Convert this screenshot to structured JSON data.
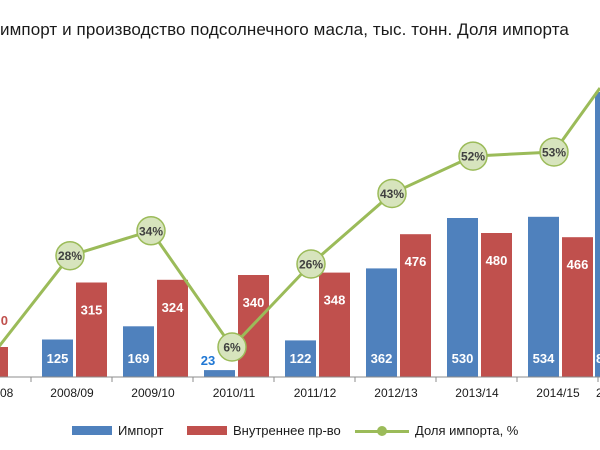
{
  "title": "импорт и производство подсолнечного масла, тыс. тонн.  Доля импорта",
  "colors": {
    "import": "#4f81bd",
    "domestic": "#c0504d",
    "share": "#9bbb59",
    "share_marker": "#d7e4bd",
    "import_label_small": "#1f77d4"
  },
  "legend": {
    "import": "Импорт",
    "domestic": "Внутреннее пр-во",
    "share": "Доля импорта, %"
  },
  "chart_data": {
    "type": "bar",
    "categories": [
      "08",
      "2008/09",
      "2009/10",
      "2010/11",
      "2011/12",
      "2012/13",
      "2013/14",
      "2014/15",
      "2"
    ],
    "series": [
      {
        "name": "Импорт",
        "kind": "bar",
        "values": [
          null,
          125,
          169,
          23,
          122,
          362,
          530,
          534,
          null
        ],
        "labels": [
          "",
          "125",
          "169",
          "23",
          "122",
          "362",
          "530",
          "534",
          "8"
        ]
      },
      {
        "name": "Внутреннее пр-во",
        "kind": "bar",
        "values": [
          null,
          315,
          324,
          340,
          348,
          476,
          480,
          466,
          null
        ],
        "labels": [
          "0",
          "315",
          "324",
          "340",
          "348",
          "476",
          "480",
          "466",
          ""
        ]
      },
      {
        "name": "Доля импорта, %",
        "kind": "line",
        "values": [
          null,
          28,
          34,
          6,
          26,
          43,
          52,
          53,
          null
        ],
        "labels": [
          "",
          "28%",
          "34%",
          "6%",
          "26%",
          "43%",
          "52%",
          "53%",
          ""
        ]
      }
    ],
    "axes": {
      "bars_ylim": [
        0,
        850
      ],
      "share_ylim": [
        0,
        75
      ]
    },
    "legend_position": "bottom"
  }
}
